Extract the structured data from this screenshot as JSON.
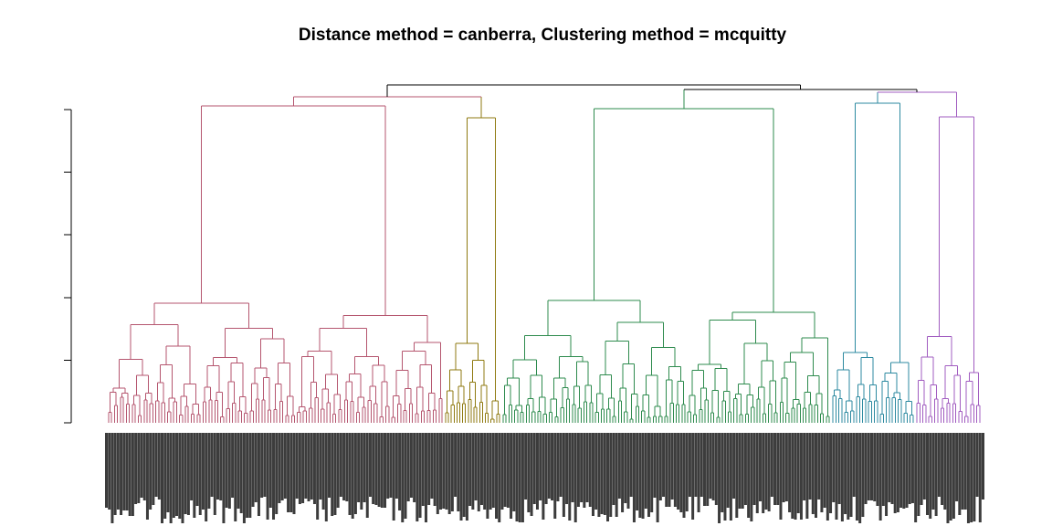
{
  "chart_data": {
    "type": "dendrogram",
    "title": "Distance method = canberra, Clustering method = mcquitty",
    "xlabel": "",
    "ylabel": "",
    "y_ticks": 6,
    "y_tick_labels": "not visible",
    "leaf_labels": "dense, unreadable (one per leaf)",
    "leaf_count_approx": 300,
    "clusters": [
      {
        "id": "c1",
        "color": "#b5566f",
        "leaves_approx": 114
      },
      {
        "id": "c2",
        "color": "#8f7a10",
        "leaves_approx": 20
      },
      {
        "id": "c3",
        "color": "#2e8b4e",
        "leaves_approx": 114
      },
      {
        "id": "c4",
        "color": "#2d8aa0",
        "leaves_approx": 28
      },
      {
        "id": "c5",
        "color": "#a15cc0",
        "leaves_approx": 22
      }
    ],
    "trunk_color": "#000000"
  }
}
